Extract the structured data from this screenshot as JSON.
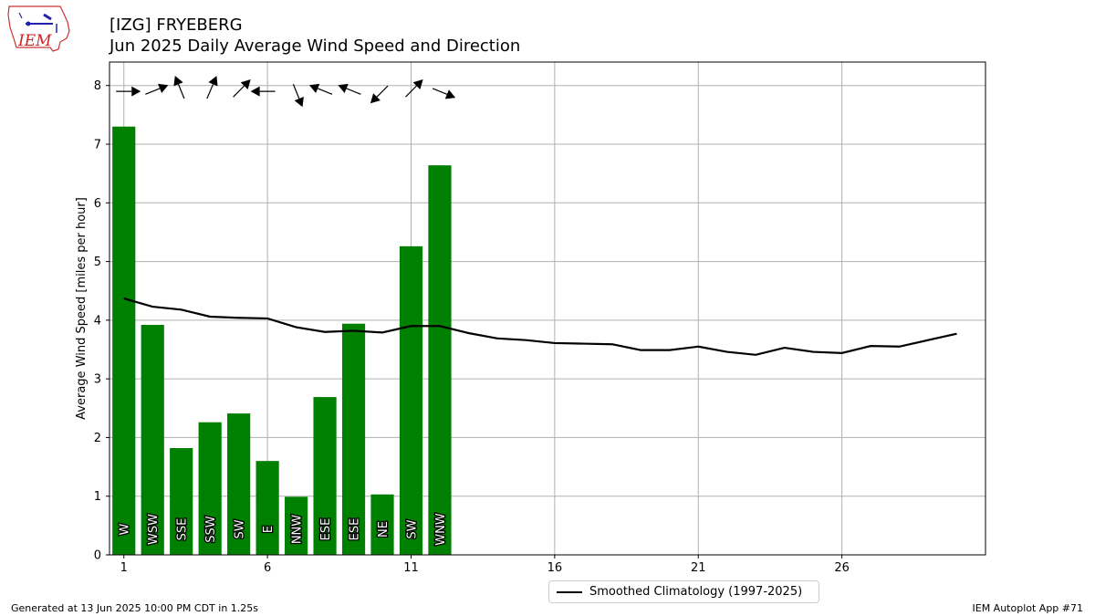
{
  "header": {
    "title_line1": "[IZG] FRYEBERG",
    "title_line2": "Jun 2025 Daily Average Wind Speed and Direction"
  },
  "logo": {
    "text": "IEM"
  },
  "footer": {
    "left": "Generated at 13 Jun 2025 10:00 PM CDT in 1.25s",
    "right": "IEM Autoplot App #71"
  },
  "legend": {
    "label": "Smoothed Climatology (1997-2025)"
  },
  "colors": {
    "bar": "#008000",
    "climo_line": "#000000",
    "grid": "#b0b0b0"
  },
  "chart_data": {
    "type": "bar",
    "title": "[IZG] FRYEBERG\nJun 2025 Daily Average Wind Speed and Direction",
    "xlabel": "",
    "ylabel": "Average Wind Speed [miles per hour]",
    "xlim": [
      0.5,
      31
    ],
    "ylim": [
      0,
      8.4
    ],
    "xticks": [
      1,
      6,
      11,
      16,
      21,
      26
    ],
    "yticks": [
      0,
      1,
      2,
      3,
      4,
      5,
      6,
      7,
      8
    ],
    "grid": true,
    "legend_position": "bottom-center",
    "bars": {
      "days": [
        1,
        2,
        3,
        4,
        5,
        6,
        7,
        8,
        9,
        10,
        11,
        12
      ],
      "values": [
        7.3,
        3.92,
        1.82,
        2.26,
        2.41,
        1.6,
        0.99,
        2.69,
        3.94,
        1.03,
        5.26,
        6.64
      ],
      "direction_labels": [
        "W",
        "WSW",
        "SSE",
        "SSW",
        "SW",
        "E",
        "NNW",
        "ESE",
        "ESE",
        "NE",
        "SW",
        "WNW"
      ],
      "direction_degrees": [
        270,
        248,
        158,
        203,
        225,
        90,
        338,
        112,
        112,
        45,
        225,
        292
      ]
    },
    "series": [
      {
        "name": "Smoothed Climatology (1997-2025)",
        "type": "line",
        "x": [
          1,
          2,
          3,
          4,
          5,
          6,
          7,
          8,
          9,
          10,
          11,
          12,
          13,
          14,
          15,
          16,
          17,
          18,
          19,
          20,
          21,
          22,
          23,
          24,
          25,
          26,
          27,
          28,
          29,
          30
        ],
        "values": [
          4.37,
          4.23,
          4.18,
          4.06,
          4.04,
          4.03,
          3.88,
          3.8,
          3.82,
          3.79,
          3.9,
          3.9,
          3.78,
          3.69,
          3.66,
          3.61,
          3.6,
          3.59,
          3.49,
          3.49,
          3.55,
          3.46,
          3.41,
          3.53,
          3.46,
          3.44,
          3.56,
          3.55,
          3.66,
          3.77
        ]
      }
    ]
  }
}
